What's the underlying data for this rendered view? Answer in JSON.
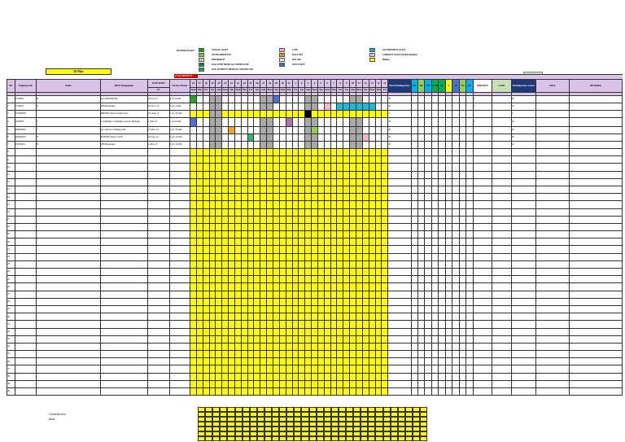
{
  "legend": {
    "title": "KETERANGAN :",
    "items": [
      {
        "code": "AL",
        "label": "ANNUAL LEAVE",
        "color": "#22aa22"
      },
      {
        "code": "UL",
        "label": "NO INFORMATION",
        "color": "#8fd14f"
      },
      {
        "code": "P",
        "label": "PERMISSION",
        "color": "#c6e0b4"
      },
      {
        "code": "SCM",
        "label": "SICK WITH MEDICAL CERTIFICATE",
        "color": "#2e8b57"
      },
      {
        "code": "SNC",
        "label": "SICK WITHOUT MEDICAL CERTIFICATE",
        "color": "#3cb371"
      },
      {
        "code": "L",
        "label": "LATE",
        "color": "#f4b6c2"
      },
      {
        "code": "HD",
        "label": "HALF DAY",
        "color": "#f5a623"
      },
      {
        "code": "OFF",
        "label": "DAY OFF",
        "color": "#ffffff"
      },
      {
        "code": "JL",
        "label": "JOIN LEAVE",
        "color": "#4a6fd8"
      },
      {
        "code": "GL",
        "label": "GOVERNMENT LEAVE",
        "color": "#1fb8d8"
      },
      {
        "code": "CL",
        "label": "COMPANY LEAVE (Would Mandate)",
        "color": "#ffc0cb"
      },
      {
        "code": "",
        "label": "Holiday",
        "color": "#ffff00"
      }
    ]
  },
  "date_badge": "16-Mar",
  "fixed_present_label": "Fixed PRESENT",
  "green_box": "40",
  "headers": {
    "no": "NO",
    "employee_id": "Employee ID",
    "name": "Name",
    "designation": "HOW Designation",
    "join_date": "JOIN DATE",
    "in": "IN",
    "service_period": "Service Period",
    "days_group": "DAYS WORKED",
    "total": "Total Working Days",
    "summary": [
      "SK",
      "OL",
      "PA",
      "SCM",
      "AL",
      "L",
      "JL",
      "UL",
      "PL"
    ],
    "late": "LATE",
    "present": "PRESENT",
    "days_worked": "Working Days Count",
    "sign": "SIGN",
    "remark": "REMARK"
  },
  "days": [
    "16",
    "17",
    "18",
    "19",
    "20",
    "21",
    "22",
    "23",
    "24",
    "25",
    "26",
    "27",
    "28",
    "29",
    "30",
    "31",
    "1",
    "2",
    "3",
    "4",
    "5",
    "6",
    "7",
    "8",
    "9",
    "10",
    "11",
    "12",
    "13",
    "14",
    "15"
  ],
  "weekdays": [
    "Wed",
    "Thu",
    "Fri",
    "Sat",
    "Sun",
    "Mon",
    "Tue",
    "Wed",
    "Thu",
    "Fri",
    "Sat",
    "Sun",
    "Mon",
    "Tue",
    "Wed",
    "Thu",
    "Fri",
    "Sat",
    "Sun",
    "Mon",
    "Tue",
    "Wed",
    "Thu",
    "Fri",
    "Sat",
    "Sun",
    "Mon",
    "Tue",
    "Wed",
    "Thu",
    "Fri"
  ],
  "employees": [
    {
      "no": "1",
      "id": "0570000",
      "name": "N",
      "designation": "SA-DRIVER HK",
      "join": "26-Jul-13",
      "period": "3 yrs 8 mth",
      "total": "26",
      "present": "2",
      "days": "26"
    },
    {
      "no": "2",
      "id": "1110003",
      "name": "S",
      "designation": "OB Messenger",
      "join": "01-Nov-13",
      "period": "3 yrs 4 mth",
      "total": "24",
      "present": "2",
      "days": "24"
    },
    {
      "no": "3",
      "id": "210000005",
      "name": "",
      "designation": "IMPORT Import Supervisor",
      "join": "01-Aug-12",
      "period": "5 yrs 10 mth",
      "total": "4",
      "present": "",
      "days": "4"
    },
    {
      "no": "4",
      "id": "5020000",
      "name": "C",
      "designation": "Consulting Consulting General Manager",
      "join": "1-Feb-13",
      "period": "1 yrs 8 mth",
      "total": "26",
      "present": "4",
      "days": "26"
    },
    {
      "no": "5",
      "id": "409000019",
      "name": "J",
      "designation": "Account Accounting staff",
      "join": "13-Dec-14",
      "period": "0 yrs 10 mth",
      "total": "26",
      "present": "",
      "days": "26"
    },
    {
      "no": "6",
      "id": "409000015",
      "name": "E",
      "designation": "EXPORT Export Staff",
      "join": "16-Sep-14",
      "period": "0 yrs 10 mth",
      "total": "26",
      "present": "",
      "days": "26"
    },
    {
      "no": "7",
      "id": "5303000-1",
      "name": "D",
      "designation": "OB Messenger",
      "join": "1-Mar-15",
      "period": "0 yrs 10 mth",
      "total": "22",
      "present": "",
      "days": "22"
    }
  ],
  "empty_rows": [
    "8",
    "9",
    "10",
    "11",
    "12",
    "13",
    "14",
    "15",
    "16",
    "17",
    "18",
    "19",
    "20",
    "21",
    "22",
    "23",
    "24",
    "25",
    "26",
    "27",
    "28",
    "29",
    "30",
    "31",
    "32",
    "33",
    "34",
    "35",
    "36",
    "37",
    "38",
    "39",
    "40"
  ],
  "verified_label": "VERIFIED BY,",
  "verified_role": "HRD"
}
